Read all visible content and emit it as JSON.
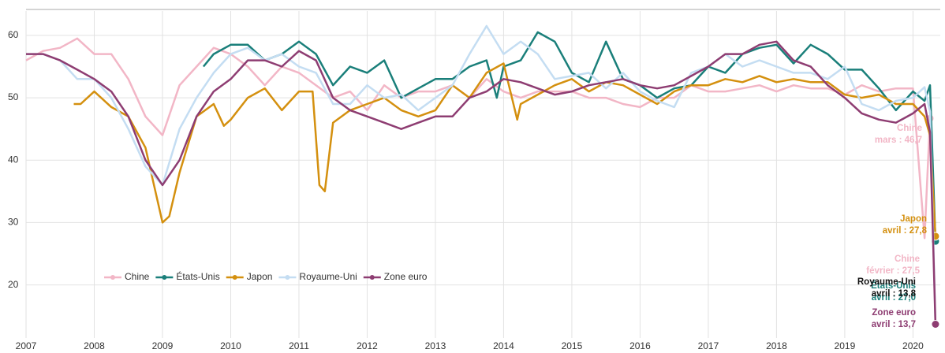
{
  "chart_data": {
    "type": "line",
    "xlim": [
      2007,
      2020.4
    ],
    "xticks": [
      2007,
      2008,
      2009,
      2010,
      2011,
      2012,
      2013,
      2014,
      2015,
      2016,
      2017,
      2018,
      2019,
      2020
    ],
    "ylim": [
      12.5,
      63.9
    ],
    "yticks": [
      20,
      30,
      40,
      50,
      60
    ],
    "grid": true,
    "series": [
      {
        "name": "Chine",
        "color": "#f2b6c6",
        "x": [
          2007,
          2007.25,
          2007.5,
          2007.75,
          2008,
          2008.25,
          2008.5,
          2008.75,
          2009,
          2009.25,
          2009.5,
          2009.75,
          2010,
          2010.25,
          2010.5,
          2010.75,
          2011,
          2011.25,
          2011.5,
          2011.75,
          2012,
          2012.25,
          2012.5,
          2012.75,
          2013,
          2013.25,
          2013.5,
          2013.75,
          2014,
          2014.25,
          2014.5,
          2014.75,
          2015,
          2015.25,
          2015.5,
          2015.75,
          2016,
          2016.25,
          2016.5,
          2016.75,
          2017,
          2017.25,
          2017.5,
          2017.75,
          2018,
          2018.25,
          2018.5,
          2018.75,
          2019,
          2019.25,
          2019.5,
          2019.75,
          2020,
          2020.17,
          2020.25
        ],
        "values": [
          56,
          57.5,
          58,
          59.5,
          57,
          57,
          53,
          47,
          44,
          52,
          55,
          58,
          57,
          55,
          52,
          55,
          54,
          52,
          50,
          51,
          48,
          52,
          50,
          51,
          51,
          52,
          50,
          53,
          51,
          50,
          51,
          51,
          51,
          50,
          50,
          49,
          48.5,
          50,
          50,
          52,
          51,
          51,
          51.5,
          52,
          51,
          52,
          51.5,
          51.5,
          50.5,
          52,
          51,
          51.5,
          51.5,
          27.5,
          46.7
        ]
      },
      {
        "name": "États-Unis",
        "color": "#1a7f7a",
        "x": [
          2009.6,
          2009.75,
          2010,
          2010.25,
          2010.5,
          2010.75,
          2011,
          2011.25,
          2011.5,
          2011.75,
          2012,
          2012.25,
          2012.5,
          2012.75,
          2013,
          2013.25,
          2013.5,
          2013.75,
          2013.9,
          2014,
          2014.25,
          2014.5,
          2014.75,
          2015,
          2015.25,
          2015.5,
          2015.75,
          2016,
          2016.25,
          2016.5,
          2016.75,
          2017,
          2017.25,
          2017.5,
          2017.75,
          2018,
          2018.25,
          2018.5,
          2018.75,
          2019,
          2019.25,
          2019.5,
          2019.75,
          2020,
          2020.17,
          2020.25,
          2020.33
        ],
        "values": [
          55,
          57,
          58.5,
          58.5,
          56,
          57,
          59,
          57,
          52,
          55,
          54,
          56,
          50,
          51.5,
          53,
          53,
          55,
          56,
          50,
          55,
          56,
          60.5,
          59,
          54,
          52.5,
          59,
          53,
          52,
          50,
          51.5,
          52,
          55,
          54,
          57,
          58,
          58.5,
          55.5,
          58.5,
          57,
          54.5,
          54.5,
          51.5,
          48,
          51,
          49.5,
          52,
          27.0
        ]
      },
      {
        "name": "Japon",
        "color": "#d4900f",
        "x": [
          2007.7,
          2007.8,
          2008,
          2008.25,
          2008.5,
          2008.75,
          2009,
          2009.1,
          2009.25,
          2009.5,
          2009.75,
          2009.9,
          2010,
          2010.25,
          2010.5,
          2010.75,
          2011,
          2011.2,
          2011.3,
          2011.38,
          2011.5,
          2011.75,
          2012,
          2012.25,
          2012.5,
          2012.75,
          2013,
          2013.25,
          2013.5,
          2013.75,
          2014,
          2014.2,
          2014.25,
          2014.5,
          2014.75,
          2015,
          2015.25,
          2015.5,
          2015.75,
          2016,
          2016.25,
          2016.5,
          2016.75,
          2017,
          2017.25,
          2017.5,
          2017.75,
          2018,
          2018.25,
          2018.5,
          2018.75,
          2019,
          2019.25,
          2019.5,
          2019.75,
          2020,
          2020.17,
          2020.25,
          2020.33
        ],
        "values": [
          49,
          49,
          51,
          48.5,
          47,
          42,
          30,
          31,
          38,
          47,
          49,
          45.5,
          46.5,
          50,
          51.5,
          48,
          51,
          51,
          36,
          35,
          46,
          48,
          49,
          50,
          48,
          47,
          48,
          52,
          50,
          54,
          55.5,
          46.5,
          49,
          50.5,
          52,
          53,
          51,
          52.5,
          52,
          50.5,
          49,
          51,
          52,
          52,
          53,
          52.5,
          53.5,
          52.5,
          53,
          52.5,
          52.5,
          50.5,
          50,
          50.5,
          49,
          49,
          47,
          44,
          27.8
        ]
      },
      {
        "name": "Royaume-Uni",
        "color": "#c4ddf2",
        "x": [
          2007,
          2007.25,
          2007.5,
          2007.75,
          2008,
          2008.25,
          2008.5,
          2008.75,
          2009,
          2009.25,
          2009.5,
          2009.75,
          2010,
          2010.25,
          2010.5,
          2010.75,
          2011,
          2011.25,
          2011.5,
          2011.75,
          2012,
          2012.25,
          2012.5,
          2012.75,
          2013,
          2013.25,
          2013.5,
          2013.75,
          2014,
          2014.25,
          2014.5,
          2014.75,
          2015,
          2015.25,
          2015.5,
          2015.75,
          2016,
          2016.25,
          2016.5,
          2016.75,
          2017,
          2017.25,
          2017.5,
          2017.75,
          2018,
          2018.25,
          2018.5,
          2018.75,
          2019,
          2019.25,
          2019.5,
          2019.75,
          2020,
          2020.17,
          2020.25,
          2020.33
        ],
        "values": [
          57,
          57,
          56,
          53,
          53,
          50,
          45,
          39,
          36,
          45,
          50,
          54,
          57,
          58,
          56,
          57,
          55,
          54,
          49,
          49,
          52,
          50,
          50.5,
          48,
          50,
          52,
          57,
          61.5,
          57,
          59,
          57,
          53,
          53.5,
          54,
          51.5,
          54,
          51,
          49.5,
          48.5,
          54,
          55,
          57,
          55,
          56,
          55,
          54,
          54,
          53,
          55,
          49,
          48,
          49.5,
          50,
          51.7,
          47.8,
          13.8
        ]
      },
      {
        "name": "Zone euro",
        "color": "#8e3d72",
        "x": [
          2007,
          2007.25,
          2007.5,
          2007.75,
          2008,
          2008.25,
          2008.5,
          2008.75,
          2009,
          2009.25,
          2009.5,
          2009.75,
          2010,
          2010.25,
          2010.5,
          2010.75,
          2011,
          2011.25,
          2011.5,
          2011.75,
          2012,
          2012.25,
          2012.5,
          2012.75,
          2013,
          2013.25,
          2013.5,
          2013.75,
          2014,
          2014.25,
          2014.5,
          2014.75,
          2015,
          2015.25,
          2015.5,
          2015.75,
          2016,
          2016.25,
          2016.5,
          2016.75,
          2017,
          2017.25,
          2017.5,
          2017.75,
          2018,
          2018.25,
          2018.5,
          2018.75,
          2019,
          2019.25,
          2019.5,
          2019.75,
          2020,
          2020.17,
          2020.25,
          2020.33
        ],
        "values": [
          57,
          57,
          56,
          54.5,
          53,
          51,
          47,
          40,
          36,
          40,
          47,
          51,
          53,
          56,
          56,
          55,
          57.5,
          56,
          50,
          48,
          47,
          46,
          45,
          46,
          47,
          47,
          50,
          51,
          53,
          52.5,
          51.5,
          50.5,
          51,
          52,
          52.5,
          53,
          52,
          51.5,
          52,
          53.5,
          55,
          57,
          57,
          58.5,
          59,
          56,
          55,
          52,
          50,
          47.5,
          46.5,
          46,
          47.5,
          49,
          44.5,
          13.7
        ]
      }
    ],
    "annotations": [
      {
        "lines": [
          "Chine",
          "mars : 46,7"
        ],
        "color": "#f2b6c6"
      },
      {
        "lines": [
          "Japon",
          "avril : 27,8"
        ],
        "color": "#d4900f"
      },
      {
        "lines": [
          "Chine",
          "février : 27,5"
        ],
        "color": "#f2b6c6"
      },
      {
        "lines": [
          "États-Unis",
          "avril : 27,0"
        ],
        "color": "#1a7f7a"
      },
      {
        "lines": [
          "Royaume-Uni",
          "avril : 13,8"
        ],
        "color": "#111111"
      },
      {
        "lines": [
          "Zone euro",
          "avril : 13,7"
        ],
        "color": "#8e3d72"
      }
    ]
  }
}
